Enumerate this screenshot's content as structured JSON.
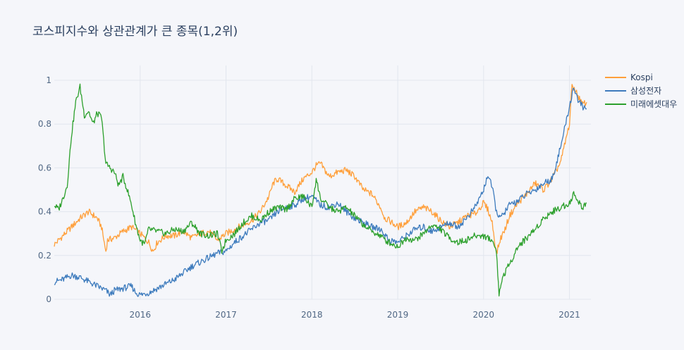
{
  "chart_title": "코스피지수와 상관관계가 큰 종목(1,2위)",
  "chart_data": {
    "type": "line",
    "title": "코스피지수와 상관관계가 큰 종목(1,2위)",
    "xlabel": "",
    "ylabel": "",
    "xlim": [
      2015.0,
      2021.25
    ],
    "ylim": [
      0,
      1
    ],
    "x_ticks": [
      "2016",
      "2017",
      "2018",
      "2019",
      "2020",
      "2021"
    ],
    "y_ticks": [
      "0",
      "0.2",
      "0.4",
      "0.6",
      "0.8",
      "1"
    ],
    "grid": true,
    "legend_position": "top-right",
    "series": [
      {
        "name": "Kospi",
        "color": "#ff9f3a",
        "x": [
          2015.0,
          2015.1,
          2015.2,
          2015.3,
          2015.4,
          2015.5,
          2015.55,
          2015.6,
          2015.62,
          2015.7,
          2015.8,
          2015.9,
          2016.0,
          2016.1,
          2016.15,
          2016.2,
          2016.3,
          2016.4,
          2016.5,
          2016.6,
          2016.7,
          2016.8,
          2016.9,
          2017.0,
          2017.1,
          2017.2,
          2017.3,
          2017.4,
          2017.5,
          2017.55,
          2017.6,
          2017.7,
          2017.8,
          2017.9,
          2018.0,
          2018.05,
          2018.1,
          2018.2,
          2018.3,
          2018.4,
          2018.5,
          2018.6,
          2018.7,
          2018.8,
          2018.85,
          2018.9,
          2019.0,
          2019.1,
          2019.2,
          2019.3,
          2019.4,
          2019.5,
          2019.6,
          2019.7,
          2019.8,
          2019.9,
          2020.0,
          2020.05,
          2020.1,
          2020.15,
          2020.2,
          2020.25,
          2020.3,
          2020.4,
          2020.5,
          2020.6,
          2020.7,
          2020.8,
          2020.9,
          2021.0,
          2021.03,
          2021.1,
          2021.15,
          2021.2
        ],
        "values": [
          0.25,
          0.29,
          0.33,
          0.37,
          0.4,
          0.37,
          0.33,
          0.22,
          0.27,
          0.28,
          0.31,
          0.33,
          0.3,
          0.26,
          0.22,
          0.26,
          0.29,
          0.29,
          0.31,
          0.28,
          0.3,
          0.31,
          0.27,
          0.3,
          0.32,
          0.34,
          0.36,
          0.4,
          0.47,
          0.53,
          0.55,
          0.52,
          0.49,
          0.55,
          0.58,
          0.61,
          0.62,
          0.56,
          0.58,
          0.59,
          0.56,
          0.5,
          0.48,
          0.42,
          0.37,
          0.36,
          0.33,
          0.35,
          0.4,
          0.42,
          0.4,
          0.36,
          0.33,
          0.35,
          0.38,
          0.39,
          0.44,
          0.41,
          0.35,
          0.21,
          0.28,
          0.32,
          0.38,
          0.44,
          0.48,
          0.53,
          0.5,
          0.55,
          0.63,
          0.8,
          0.98,
          0.93,
          0.89,
          0.9
        ]
      },
      {
        "name": "삼성전자",
        "color": "#3d7bbd",
        "x": [
          2015.0,
          2015.1,
          2015.2,
          2015.3,
          2015.4,
          2015.5,
          2015.6,
          2015.65,
          2015.7,
          2015.8,
          2015.9,
          2015.95,
          2016.0,
          2016.1,
          2016.2,
          2016.3,
          2016.4,
          2016.5,
          2016.6,
          2016.7,
          2016.8,
          2016.9,
          2017.0,
          2017.1,
          2017.2,
          2017.3,
          2017.4,
          2017.5,
          2017.6,
          2017.7,
          2017.8,
          2017.9,
          2018.0,
          2018.1,
          2018.2,
          2018.3,
          2018.4,
          2018.5,
          2018.6,
          2018.7,
          2018.8,
          2018.9,
          2019.0,
          2019.1,
          2019.2,
          2019.3,
          2019.4,
          2019.5,
          2019.6,
          2019.7,
          2019.8,
          2019.9,
          2020.0,
          2020.05,
          2020.1,
          2020.15,
          2020.2,
          2020.25,
          2020.3,
          2020.4,
          2020.5,
          2020.6,
          2020.7,
          2020.8,
          2020.9,
          2021.0,
          2021.05,
          2021.1,
          2021.15,
          2021.2
        ],
        "values": [
          0.08,
          0.09,
          0.11,
          0.1,
          0.08,
          0.06,
          0.04,
          0.02,
          0.04,
          0.05,
          0.06,
          0.03,
          0.02,
          0.03,
          0.05,
          0.07,
          0.09,
          0.12,
          0.15,
          0.17,
          0.19,
          0.21,
          0.22,
          0.26,
          0.29,
          0.32,
          0.35,
          0.36,
          0.4,
          0.42,
          0.43,
          0.46,
          0.47,
          0.43,
          0.42,
          0.44,
          0.4,
          0.37,
          0.35,
          0.33,
          0.32,
          0.27,
          0.26,
          0.29,
          0.32,
          0.33,
          0.31,
          0.33,
          0.35,
          0.33,
          0.37,
          0.42,
          0.5,
          0.57,
          0.51,
          0.4,
          0.37,
          0.4,
          0.43,
          0.45,
          0.48,
          0.5,
          0.53,
          0.55,
          0.7,
          0.88,
          0.97,
          0.91,
          0.88,
          0.87
        ]
      },
      {
        "name": "미래에셋대우",
        "color": "#2ca02c",
        "x": [
          2015.0,
          2015.05,
          2015.1,
          2015.15,
          2015.2,
          2015.25,
          2015.3,
          2015.35,
          2015.4,
          2015.45,
          2015.5,
          2015.55,
          2015.6,
          2015.65,
          2015.7,
          2015.75,
          2015.8,
          2015.85,
          2015.9,
          2015.95,
          2016.0,
          2016.05,
          2016.1,
          2016.2,
          2016.3,
          2016.4,
          2016.5,
          2016.6,
          2016.7,
          2016.8,
          2016.9,
          2016.95,
          2017.0,
          2017.1,
          2017.2,
          2017.3,
          2017.4,
          2017.5,
          2017.6,
          2017.7,
          2017.8,
          2017.9,
          2018.0,
          2018.05,
          2018.1,
          2018.2,
          2018.3,
          2018.4,
          2018.5,
          2018.6,
          2018.7,
          2018.8,
          2018.85,
          2018.9,
          2019.0,
          2019.1,
          2019.2,
          2019.3,
          2019.4,
          2019.5,
          2019.6,
          2019.7,
          2019.8,
          2019.9,
          2020.0,
          2020.1,
          2020.15,
          2020.18,
          2020.22,
          2020.3,
          2020.4,
          2020.5,
          2020.6,
          2020.7,
          2020.8,
          2020.9,
          2021.0,
          2021.05,
          2021.1,
          2021.15,
          2021.2
        ],
        "values": [
          0.43,
          0.41,
          0.46,
          0.52,
          0.75,
          0.9,
          0.97,
          0.84,
          0.86,
          0.8,
          0.85,
          0.83,
          0.62,
          0.6,
          0.58,
          0.52,
          0.56,
          0.5,
          0.43,
          0.34,
          0.27,
          0.25,
          0.32,
          0.31,
          0.3,
          0.32,
          0.31,
          0.35,
          0.3,
          0.29,
          0.3,
          0.22,
          0.27,
          0.3,
          0.35,
          0.38,
          0.36,
          0.4,
          0.42,
          0.41,
          0.46,
          0.47,
          0.42,
          0.55,
          0.46,
          0.42,
          0.4,
          0.42,
          0.38,
          0.34,
          0.31,
          0.29,
          0.27,
          0.26,
          0.24,
          0.28,
          0.27,
          0.3,
          0.34,
          0.32,
          0.28,
          0.26,
          0.27,
          0.29,
          0.29,
          0.27,
          0.22,
          0.02,
          0.1,
          0.16,
          0.24,
          0.28,
          0.32,
          0.37,
          0.4,
          0.42,
          0.44,
          0.48,
          0.45,
          0.42,
          0.44
        ]
      }
    ]
  }
}
